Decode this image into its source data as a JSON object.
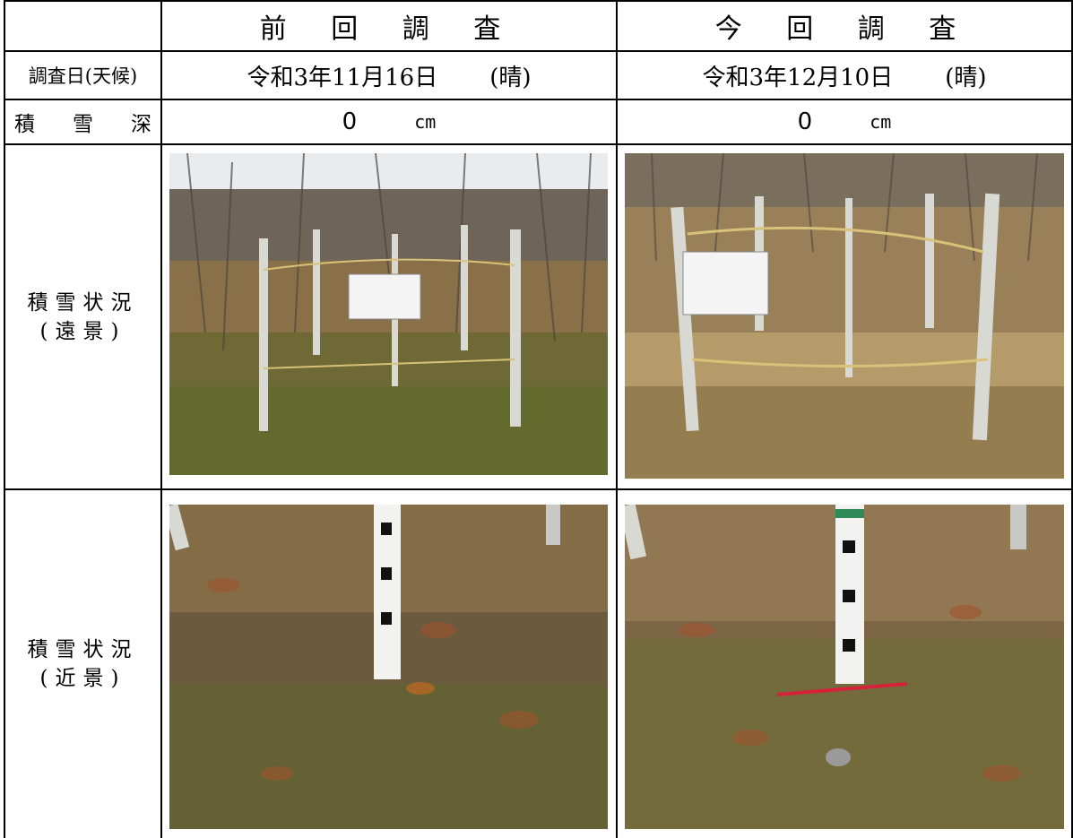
{
  "header": {
    "previous": "前 回 調 査",
    "current": "今 回 調 査"
  },
  "rows": {
    "survey_date": {
      "label": "調査日(天候)",
      "previous_date": "令和3年11月16日",
      "previous_weather": "(晴)",
      "current_date": "令和3年12月10日",
      "current_weather": "(晴)"
    },
    "snow_depth": {
      "label_chars": [
        "積",
        "雪",
        "深"
      ],
      "previous_value": "0",
      "current_value": "0",
      "unit": "cm"
    },
    "distant_view": {
      "label_line1": "積雪状況",
      "label_line2": "(遠景)",
      "previous_photo": "distant-view-photo",
      "current_photo": "distant-view-photo"
    },
    "close_view": {
      "label_line1": "積雪状況",
      "label_line2": "(近景)",
      "previous_photo": "close-view-photo",
      "current_photo": "close-view-photo"
    }
  },
  "colors": {
    "grass": "#8a7048",
    "dry_grass": "#b59a6a",
    "moss": "#5f6a2c",
    "post": "#d9d9d4",
    "sky": "#e9ecef",
    "rope": "#d8c27a"
  }
}
